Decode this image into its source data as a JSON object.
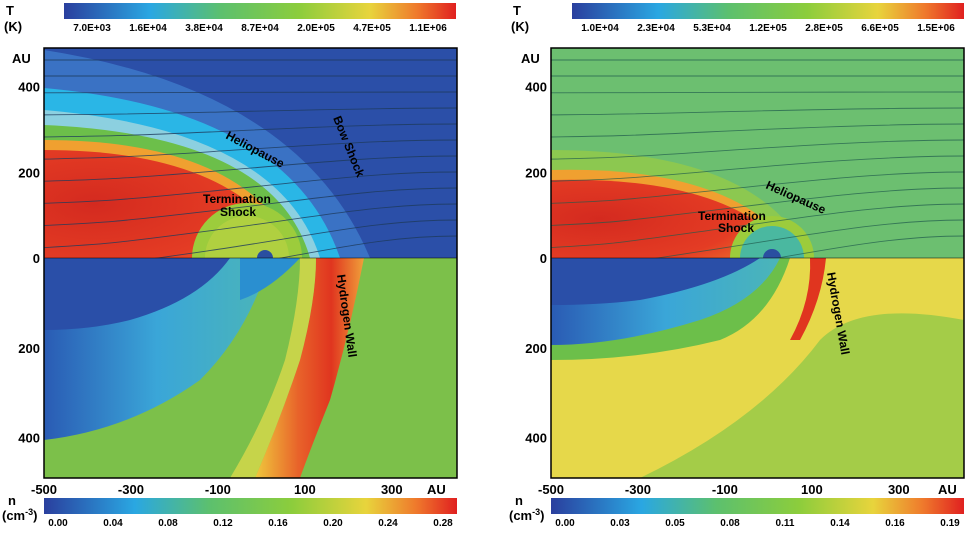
{
  "figure": {
    "panels": [
      {
        "top_colorbar": {
          "quantity": "T",
          "unit": "(K)",
          "tick_labels": [
            "7.0E+03",
            "1.6E+04",
            "3.8E+04",
            "8.7E+04",
            "2.0E+05",
            "4.7E+05",
            "1.1E+06"
          ]
        },
        "bottom_colorbar": {
          "quantity": "n",
          "unit": "(cm",
          "unit_exp": "-3",
          "unit_close": ")",
          "tick_labels": [
            "0.00",
            "0.04",
            "0.08",
            "0.12",
            "0.16",
            "0.20",
            "0.24",
            "0.28"
          ]
        },
        "y_axis_label": "AU",
        "x_axis_label": "AU",
        "x_ticks": [
          "-500",
          "-300",
          "-100",
          "100",
          "300"
        ],
        "y_ticks_top": [
          "400",
          "200",
          "0"
        ],
        "y_ticks_bottom": [
          "200",
          "400"
        ],
        "annotations": {
          "heliopause": "Heliopause",
          "bow_shock": "Bow Shock",
          "termination_line1": "Termination",
          "termination_line2": "Shock",
          "hydrogen_wall": "Hydrogen Wall"
        }
      },
      {
        "top_colorbar": {
          "quantity": "T",
          "unit": "(K)",
          "tick_labels": [
            "1.0E+04",
            "2.3E+04",
            "5.3E+04",
            "1.2E+05",
            "2.8E+05",
            "6.6E+05",
            "1.5E+06"
          ]
        },
        "bottom_colorbar": {
          "quantity": "n",
          "unit": "(cm",
          "unit_exp": "-3",
          "unit_close": ")",
          "tick_labels": [
            "0.00",
            "0.03",
            "0.05",
            "0.08",
            "0.11",
            "0.14",
            "0.16",
            "0.19"
          ]
        },
        "y_axis_label": "AU",
        "x_axis_label": "AU",
        "x_ticks": [
          "-500",
          "-300",
          "-100",
          "100",
          "300"
        ],
        "y_ticks_top": [
          "400",
          "200",
          "0"
        ],
        "y_ticks_bottom": [
          "200",
          "400"
        ],
        "annotations": {
          "heliopause": "Heliopause",
          "termination_line1": "Termination",
          "termination_line2": "Shock",
          "hydrogen_wall": "Hydrogen Wall"
        }
      }
    ],
    "colors": {
      "map_blue": "#2b4fa8",
      "map_cyan": "#2ab6e6",
      "map_green": "#6cbf4a",
      "map_yellow": "#e8d43c",
      "map_red": "#e23a24",
      "streamline": "#1e3b5c"
    }
  },
  "chart_data": [
    {
      "type": "heatmap",
      "x_unit": "AU",
      "y_unit": "AU",
      "xlim": [
        -500,
        450
      ],
      "ylim_upper": [
        0,
        490
      ],
      "ylim_lower": [
        0,
        490
      ],
      "upper_quantity": "T (K)",
      "upper_scale": "log",
      "lower_quantity": "n (cm-3)",
      "x_ticks": [
        -500,
        -300,
        -100,
        100,
        300
      ],
      "y_ticks": [
        400,
        200,
        0,
        200,
        400
      ]
    },
    {
      "type": "heatmap",
      "x_unit": "AU",
      "y_unit": "AU",
      "xlim": [
        -500,
        450
      ],
      "ylim_upper": [
        0,
        490
      ],
      "ylim_lower": [
        0,
        490
      ],
      "upper_quantity": "T (K)",
      "upper_scale": "log",
      "lower_quantity": "n (cm-3)",
      "x_ticks": [
        -500,
        -300,
        -100,
        100,
        300
      ],
      "y_ticks": [
        400,
        200,
        0,
        200,
        400
      ]
    }
  ]
}
